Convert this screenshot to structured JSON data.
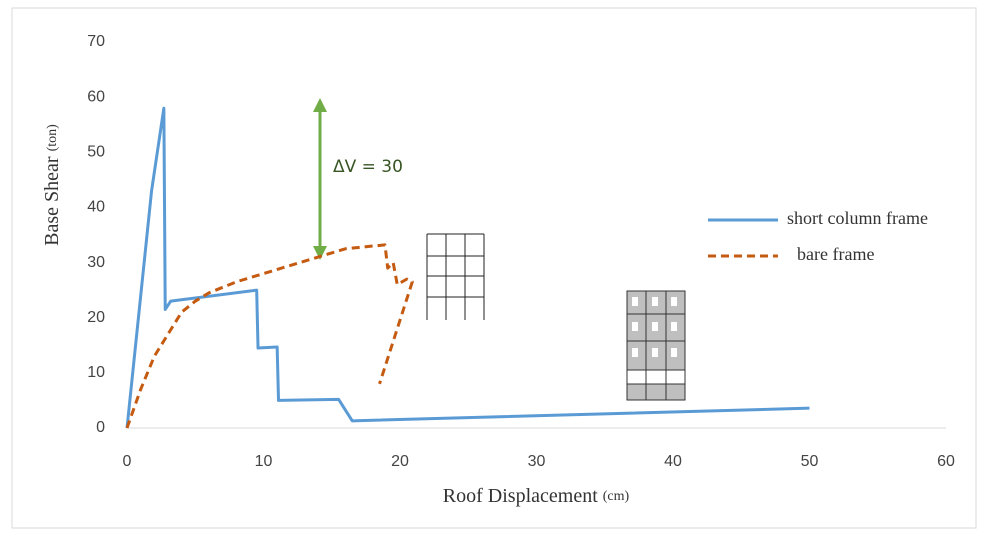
{
  "chart_data": {
    "type": "line",
    "x_label": "Roof Displacement",
    "x_unit": "(cm)",
    "y_label": "Base Shear",
    "y_unit": "(ton)",
    "annotation": "ΔV = 30",
    "xlim": [
      0,
      60
    ],
    "xticks": [
      0,
      10,
      20,
      30,
      40,
      50,
      60
    ],
    "ylim": [
      0,
      70
    ],
    "yticks": [
      0,
      10,
      20,
      30,
      40,
      50,
      60,
      70
    ],
    "grid": false,
    "series": [
      {
        "name": "short column frame",
        "color": "#5b9bd5",
        "dash": false,
        "x": [
          0,
          1.8,
          2.7,
          2.8,
          3.2,
          9.5,
          9.6,
          11,
          11.1,
          15.5,
          16.5,
          50
        ],
        "values": [
          0,
          43,
          58,
          21.5,
          23,
          25,
          14.5,
          14.7,
          5,
          5.2,
          1.3,
          3.6
        ]
      },
      {
        "name": "bare frame",
        "color": "#c55a11",
        "dash": true,
        "x": [
          0,
          1,
          2,
          3,
          4,
          5,
          6,
          8,
          10,
          12,
          14,
          16,
          18,
          18.9,
          19.1,
          19.5,
          19.8,
          20.5,
          20.9,
          18.5
        ],
        "values": [
          0,
          7,
          13,
          17,
          21,
          23,
          24.5,
          26.5,
          28,
          29.5,
          31,
          32.5,
          33,
          33.2,
          29,
          30,
          26,
          27,
          26.5,
          8
        ]
      }
    ]
  }
}
